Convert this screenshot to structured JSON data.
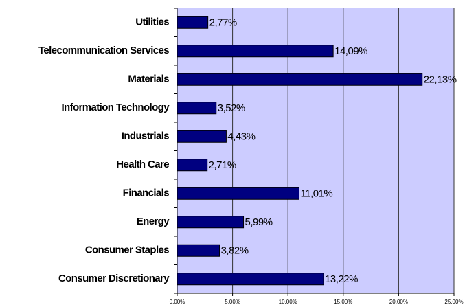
{
  "chart_data": {
    "type": "bar",
    "orientation": "horizontal",
    "categories": [
      "Utilities",
      "Telecommunication Services",
      "Materials",
      "Information Technology",
      "Industrials",
      "Health Care",
      "Financials",
      "Energy",
      "Consumer Staples",
      "Consumer Discretionary"
    ],
    "values": [
      2.77,
      14.09,
      22.13,
      3.52,
      4.43,
      2.71,
      11.01,
      5.99,
      3.82,
      13.22
    ],
    "value_labels": [
      "2,77%",
      "14,09%",
      "22,13%",
      "3,52%",
      "4,43%",
      "2,71%",
      "11,01%",
      "5,99%",
      "3,82%",
      "13,22%"
    ],
    "color": "#000080",
    "background": "#ccccff",
    "xlim": [
      0,
      25
    ],
    "xticks": [
      {
        "value": 0,
        "label": "0,00%"
      },
      {
        "value": 5,
        "label": "5,00%"
      },
      {
        "value": 10,
        "label": "10,00%"
      },
      {
        "value": 15,
        "label": "15,00%"
      },
      {
        "value": 20,
        "label": "20,00%"
      },
      {
        "value": 25,
        "label": "25,00%"
      }
    ],
    "grid": true
  }
}
